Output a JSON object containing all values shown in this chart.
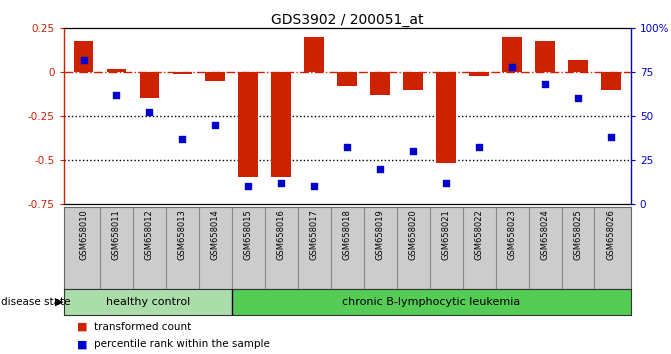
{
  "title": "GDS3902 / 200051_at",
  "samples": [
    "GSM658010",
    "GSM658011",
    "GSM658012",
    "GSM658013",
    "GSM658014",
    "GSM658015",
    "GSM658016",
    "GSM658017",
    "GSM658018",
    "GSM658019",
    "GSM658020",
    "GSM658021",
    "GSM658022",
    "GSM658023",
    "GSM658024",
    "GSM658025",
    "GSM658026"
  ],
  "bar_values": [
    0.18,
    0.02,
    -0.15,
    -0.01,
    -0.05,
    -0.6,
    -0.6,
    0.2,
    -0.08,
    -0.13,
    -0.1,
    -0.52,
    -0.02,
    0.2,
    0.18,
    0.07,
    -0.1
  ],
  "percentile_values": [
    82,
    62,
    52,
    37,
    45,
    10,
    12,
    10,
    32,
    20,
    30,
    12,
    32,
    78,
    68,
    60,
    38
  ],
  "bar_color": "#cc2200",
  "dot_color": "#0000cc",
  "ylim_left": [
    -0.75,
    0.25
  ],
  "ylim_right": [
    0,
    100
  ],
  "yticks_left": [
    0.25,
    0.0,
    -0.25,
    -0.5,
    -0.75
  ],
  "yticks_right": [
    100,
    75,
    50,
    25,
    0
  ],
  "zero_line_color": "#cc2200",
  "dotted_line_color": "#000000",
  "dotted_line_values": [
    -0.25,
    -0.5
  ],
  "healthy_control_samples": 5,
  "disease_label_healthy": "healthy control",
  "disease_label_leukemia": "chronic B-lymphocytic leukemia",
  "disease_state_label": "disease state",
  "legend_bar_label": "transformed count",
  "legend_dot_label": "percentile rank within the sample",
  "background_color": "#ffffff",
  "bar_width": 0.6,
  "healthy_bg": "#aaddaa",
  "leukemia_bg": "#55cc55",
  "xtick_bg": "#cccccc",
  "xtick_sep_color": "#888888"
}
